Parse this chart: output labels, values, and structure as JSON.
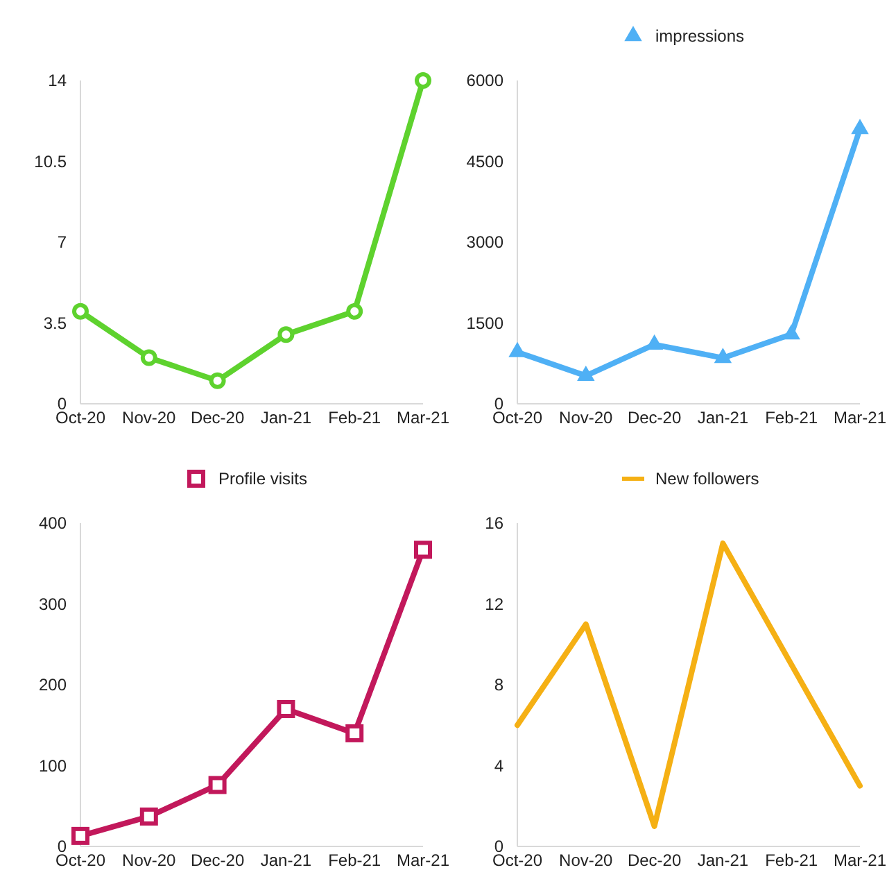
{
  "chart_data": [
    {
      "type": "line",
      "categories": [
        "Oct-20",
        "Nov-20",
        "Dec-20",
        "Jan-21",
        "Feb-21",
        "Mar-21"
      ],
      "series": [
        {
          "color": "#5ed22e",
          "values": [
            4,
            2,
            1,
            3,
            4,
            14
          ]
        }
      ],
      "ylim": [
        0,
        14
      ],
      "yticks": [
        0,
        3.5,
        7,
        10.5,
        14
      ],
      "marker": "circle",
      "line_style": "solid",
      "grid": false,
      "legend": false
    },
    {
      "type": "line",
      "categories": [
        "Oct-20",
        "Nov-20",
        "Dec-20",
        "Jan-21",
        "Feb-21",
        "Mar-21"
      ],
      "series": [
        {
          "name": "impressions",
          "color": "#4fb0f5",
          "values": [
            960,
            520,
            1100,
            850,
            1290,
            5100
          ]
        }
      ],
      "ylim": [
        0,
        6000
      ],
      "yticks": [
        0,
        1500,
        3000,
        4500,
        6000
      ],
      "marker": "triangle",
      "line_style": "solid",
      "grid": false,
      "legend": "top"
    },
    {
      "type": "line",
      "categories": [
        "Oct-20",
        "Nov-20",
        "Dec-20",
        "Jan-21",
        "Feb-21",
        "Mar-21"
      ],
      "series": [
        {
          "name": "Profile visits",
          "color": "#c2185b",
          "values": [
            13,
            37,
            76,
            170,
            140,
            367
          ]
        }
      ],
      "ylim": [
        0,
        400
      ],
      "yticks": [
        0,
        100,
        200,
        300,
        400
      ],
      "marker": "square",
      "line_style": "solid",
      "grid": false,
      "legend": "top"
    },
    {
      "type": "line",
      "categories": [
        "Oct-20",
        "Nov-20",
        "Dec-20",
        "Jan-21",
        "Feb-21",
        "Mar-21"
      ],
      "series": [
        {
          "name": "New followers",
          "color": "#f5b014",
          "values": [
            6,
            11,
            1,
            15,
            9,
            3
          ]
        }
      ],
      "ylim": [
        0,
        16
      ],
      "yticks": [
        0,
        4,
        8,
        12,
        16
      ],
      "marker": "none",
      "line_style": "solid",
      "grid": false,
      "legend": "top"
    }
  ]
}
